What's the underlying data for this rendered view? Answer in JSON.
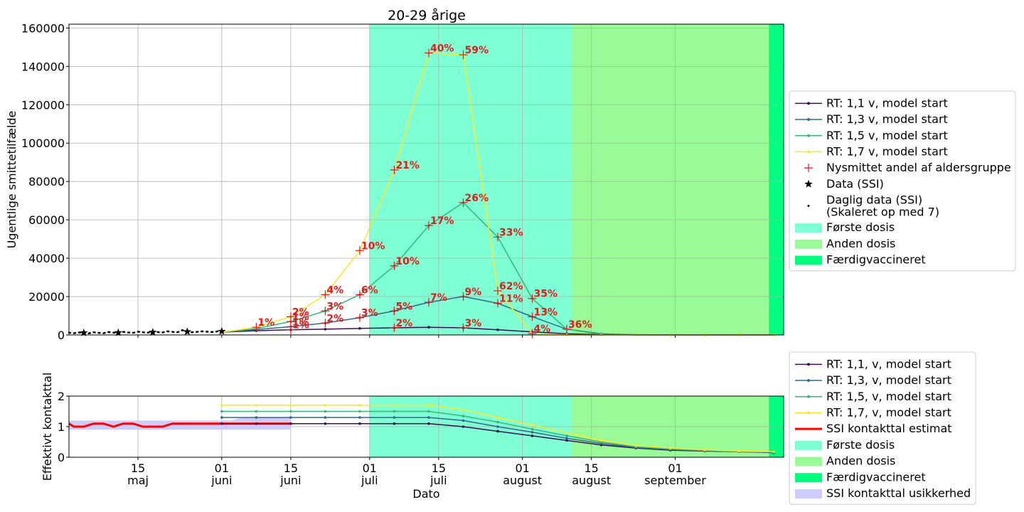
{
  "chart_data": [
    {
      "type": "line",
      "title": "20-29 årige",
      "ylabel": "Ugentlige smittetilfælde",
      "xlabel": "",
      "xlim": [
        "2021-05-01",
        "2021-09-23"
      ],
      "ylim": [
        0,
        162000
      ],
      "yticks": [
        0,
        20000,
        40000,
        60000,
        80000,
        100000,
        120000,
        140000,
        160000
      ],
      "grid": true,
      "legend_position": "right",
      "shaded_periods": [
        {
          "name": "Første dosis",
          "start": "2021-07-01",
          "end": "2021-08-11",
          "color": "#7fffd4"
        },
        {
          "name": "Anden dosis",
          "start": "2021-08-11",
          "end": "2021-09-20",
          "color": "#98fb98"
        },
        {
          "name": "Færdigvaccineret",
          "start": "2021-09-20",
          "end": "2021-09-23",
          "color": "#00ff7f"
        }
      ],
      "x": [
        "2021-06-01",
        "2021-06-08",
        "2021-06-15",
        "2021-06-22",
        "2021-06-29",
        "2021-07-06",
        "2021-07-13",
        "2021-07-20",
        "2021-07-27",
        "2021-08-03",
        "2021-08-10",
        "2021-08-17",
        "2021-08-24",
        "2021-08-31",
        "2021-09-07",
        "2021-09-14",
        "2021-09-21"
      ],
      "series": [
        {
          "name": "RT: 1,1 v, model start",
          "color": "#3b0f4f",
          "values": [
            1500,
            2200,
            2700,
            3000,
            3400,
            3700,
            4000,
            3700,
            2700,
            1600,
            600,
            200,
            60,
            20,
            10,
            5,
            2
          ]
        },
        {
          "name": "RT: 1,3 v, model start",
          "color": "#31688e",
          "values": [
            1500,
            2800,
            4300,
            6200,
            9000,
            12500,
            17000,
            20000,
            16500,
            9500,
            3000,
            600,
            120,
            30,
            10,
            5,
            2
          ]
        },
        {
          "name": "RT: 1,5 v, model start",
          "color": "#35b779",
          "values": [
            1500,
            3300,
            7000,
            12500,
            21000,
            36000,
            57000,
            69000,
            51000,
            19000,
            3000,
            300,
            40,
            10,
            5,
            2,
            1
          ]
        },
        {
          "name": "RT: 1,7 v, model start",
          "color": "#fde725",
          "values": [
            1500,
            4000,
            9500,
            21000,
            44000,
            86000,
            147000,
            146000,
            23000,
            700,
            100,
            20,
            5,
            2,
            1,
            1,
            0
          ]
        }
      ],
      "markers": {
        "name": "Nysmittet andel af aldersgruppe",
        "color": "#e41a1c",
        "points": [
          {
            "x": "2021-06-08",
            "y": 4000,
            "label": "1%"
          },
          {
            "x": "2021-06-15",
            "y": 9500,
            "label": "2%"
          },
          {
            "x": "2021-06-15",
            "y": 7000,
            "label": "1%"
          },
          {
            "x": "2021-06-15",
            "y": 4300,
            "label": "1%"
          },
          {
            "x": "2021-06-15",
            "y": 2700,
            "label": "1%"
          },
          {
            "x": "2021-06-22",
            "y": 21000,
            "label": "4%"
          },
          {
            "x": "2021-06-22",
            "y": 12500,
            "label": "3%"
          },
          {
            "x": "2021-06-22",
            "y": 6200,
            "label": "2%"
          },
          {
            "x": "2021-06-29",
            "y": 44000,
            "label": "10%"
          },
          {
            "x": "2021-06-29",
            "y": 21000,
            "label": "6%"
          },
          {
            "x": "2021-06-29",
            "y": 9000,
            "label": "3%"
          },
          {
            "x": "2021-07-06",
            "y": 86000,
            "label": "21%"
          },
          {
            "x": "2021-07-06",
            "y": 36000,
            "label": "10%"
          },
          {
            "x": "2021-07-06",
            "y": 12500,
            "label": "5%"
          },
          {
            "x": "2021-07-06",
            "y": 3700,
            "label": "2%"
          },
          {
            "x": "2021-07-13",
            "y": 147000,
            "label": "40%"
          },
          {
            "x": "2021-07-13",
            "y": 57000,
            "label": "17%"
          },
          {
            "x": "2021-07-13",
            "y": 17000,
            "label": "7%"
          },
          {
            "x": "2021-07-20",
            "y": 146000,
            "label": "59%"
          },
          {
            "x": "2021-07-20",
            "y": 69000,
            "label": "26%"
          },
          {
            "x": "2021-07-20",
            "y": 20000,
            "label": "9%"
          },
          {
            "x": "2021-07-20",
            "y": 3700,
            "label": "3%"
          },
          {
            "x": "2021-07-27",
            "y": 51000,
            "label": "33%"
          },
          {
            "x": "2021-07-27",
            "y": 23000,
            "label": "62%"
          },
          {
            "x": "2021-07-27",
            "y": 16500,
            "label": "11%"
          },
          {
            "x": "2021-08-03",
            "y": 19000,
            "label": "35%"
          },
          {
            "x": "2021-08-03",
            "y": 9500,
            "label": "13%"
          },
          {
            "x": "2021-08-03",
            "y": 700,
            "label": "4%"
          },
          {
            "x": "2021-08-10",
            "y": 3000,
            "label": "36%"
          }
        ]
      },
      "ssi_data": {
        "name": "Data (SSI)",
        "x": [
          "2021-05-04",
          "2021-05-11",
          "2021-05-18",
          "2021-05-25",
          "2021-06-01"
        ],
        "values": [
          1100,
          1200,
          1400,
          1700,
          1900
        ]
      },
      "daily_data": {
        "name": "Daglig data (SSI)\n(Skaleret op med 7)",
        "start": "2021-05-01",
        "values": [
          1200,
          900,
          1300,
          1000,
          800,
          1400,
          1100,
          900,
          1500,
          1200,
          1000,
          1600,
          1300,
          1100,
          1700,
          1400,
          1200,
          1800,
          1500,
          1300,
          1900,
          1600,
          1400,
          2500,
          1700,
          1400,
          1600,
          1900,
          1700,
          1500,
          1800,
          2000
        ]
      },
      "legend": [
        {
          "label": "RT: 1,1 v, model start",
          "kind": "line",
          "color": "#3b0f4f"
        },
        {
          "label": "RT: 1,3 v, model start",
          "kind": "line",
          "color": "#31688e"
        },
        {
          "label": "RT: 1,5 v, model start",
          "kind": "line",
          "color": "#35b779"
        },
        {
          "label": "RT: 1,7 v, model start",
          "kind": "line",
          "color": "#fde725"
        },
        {
          "label": "Nysmittet andel af aldersgruppe",
          "kind": "plus",
          "color": "#e41a1c"
        },
        {
          "label": "Data (SSI)",
          "kind": "star",
          "color": "#000000"
        },
        {
          "label": "Daglig data (SSI)\n(Skaleret op med 7)",
          "kind": "dot",
          "color": "#000000"
        },
        {
          "label": "Første dosis",
          "kind": "patch",
          "color": "#7fffd4"
        },
        {
          "label": "Anden dosis",
          "kind": "patch",
          "color": "#98fb98"
        },
        {
          "label": "Færdigvaccineret",
          "kind": "patch",
          "color": "#00ff7f"
        }
      ]
    },
    {
      "type": "line",
      "title": "",
      "ylabel": "Effektivt kontakttal",
      "xlabel": "Dato",
      "xlim": [
        "2021-05-01",
        "2021-09-23"
      ],
      "ylim": [
        0,
        2
      ],
      "yticks": [
        0,
        1,
        2
      ],
      "grid": true,
      "legend_position": "right",
      "xticks": [
        {
          "date": "2021-05-15",
          "day": "15",
          "month": "maj"
        },
        {
          "date": "2021-06-01",
          "day": "01",
          "month": "juni"
        },
        {
          "date": "2021-06-15",
          "day": "15",
          "month": "juni"
        },
        {
          "date": "2021-07-01",
          "day": "01",
          "month": "juli"
        },
        {
          "date": "2021-07-15",
          "day": "15",
          "month": "juli"
        },
        {
          "date": "2021-08-01",
          "day": "01",
          "month": "august"
        },
        {
          "date": "2021-08-15",
          "day": "15",
          "month": "august"
        },
        {
          "date": "2021-09-01",
          "day": "01",
          "month": "september"
        }
      ],
      "x": [
        "2021-06-01",
        "2021-06-08",
        "2021-06-15",
        "2021-06-22",
        "2021-06-29",
        "2021-07-06",
        "2021-07-13",
        "2021-07-20",
        "2021-07-27",
        "2021-08-03",
        "2021-08-10",
        "2021-08-17",
        "2021-08-24",
        "2021-08-31",
        "2021-09-07",
        "2021-09-14",
        "2021-09-21"
      ],
      "series": [
        {
          "name": "RT: 1,1, v, model start",
          "color": "#3b0f4f",
          "values": [
            1.1,
            1.1,
            1.1,
            1.1,
            1.1,
            1.1,
            1.1,
            1.0,
            0.85,
            0.7,
            0.55,
            0.4,
            0.3,
            0.23,
            0.2,
            0.18,
            0.15
          ]
        },
        {
          "name": "RT: 1,3, v, model start",
          "color": "#31688e",
          "values": [
            1.3,
            1.3,
            1.3,
            1.3,
            1.3,
            1.3,
            1.3,
            1.2,
            1.0,
            0.82,
            0.62,
            0.45,
            0.32,
            0.25,
            0.21,
            0.18,
            0.16
          ]
        },
        {
          "name": "RT: 1,5, v, model start",
          "color": "#35b779",
          "values": [
            1.5,
            1.5,
            1.5,
            1.5,
            1.5,
            1.5,
            1.5,
            1.35,
            1.15,
            0.92,
            0.7,
            0.5,
            0.34,
            0.27,
            0.22,
            0.19,
            0.17
          ]
        },
        {
          "name": "RT: 1,7, v, model start",
          "color": "#fde725",
          "values": [
            1.7,
            1.7,
            1.7,
            1.7,
            1.7,
            1.7,
            1.7,
            1.55,
            1.3,
            1.05,
            0.8,
            0.55,
            0.38,
            0.3,
            0.24,
            0.2,
            0.18
          ]
        }
      ],
      "ssi_estimate": {
        "name": "SSI kontakttal estimat",
        "color": "#ff0000",
        "start": "2021-05-01",
        "values": [
          1.1,
          1.0,
          1.0,
          1.0,
          1.05,
          1.1,
          1.1,
          1.1,
          1.05,
          1.0,
          1.05,
          1.1,
          1.1,
          1.1,
          1.05,
          1.0,
          1.0,
          1.0,
          1.0,
          1.0,
          1.05,
          1.1,
          1.1,
          1.1,
          1.1,
          1.1,
          1.1,
          1.1,
          1.1,
          1.1,
          1.1,
          1.1,
          1.1,
          1.1,
          1.1,
          1.1,
          1.1,
          1.1,
          1.1,
          1.1,
          1.1,
          1.1,
          1.1,
          1.1,
          1.1,
          1.1
        ]
      },
      "ssi_uncertainty": {
        "name": "SSI kontakttal usikkerhed",
        "color": "#ccccff",
        "start": "2021-05-01",
        "lower": [
          0.9,
          0.9,
          0.9,
          0.9,
          0.9,
          0.9,
          0.9,
          0.9,
          0.9,
          0.9,
          0.9,
          0.9,
          0.9,
          0.9,
          0.9,
          0.9,
          0.9,
          0.9,
          0.9,
          0.9,
          0.9,
          0.9,
          0.9,
          0.9,
          0.9,
          0.9,
          0.9,
          0.9,
          0.9,
          0.9,
          0.9,
          0.9,
          0.9,
          0.9,
          0.9,
          0.9,
          0.9,
          0.9,
          0.9,
          0.9,
          0.9,
          0.9,
          0.9,
          0.9,
          0.9,
          0.9
        ],
        "upper": [
          1.2,
          1.2,
          1.2,
          1.2,
          1.2,
          1.2,
          1.2,
          1.2,
          1.2,
          1.2,
          1.2,
          1.2,
          1.2,
          1.2,
          1.2,
          1.2,
          1.2,
          1.2,
          1.2,
          1.2,
          1.2,
          1.2,
          1.2,
          1.2,
          1.2,
          1.2,
          1.2,
          1.2,
          1.2,
          1.2,
          1.2,
          1.2,
          1.2,
          1.2,
          1.25,
          1.3,
          1.3,
          1.3,
          1.3,
          1.3,
          1.3,
          1.3,
          1.3,
          1.3,
          1.3,
          1.3
        ]
      },
      "legend": [
        {
          "label": "RT: 1,1, v, model start",
          "kind": "line",
          "color": "#3b0f4f"
        },
        {
          "label": "RT: 1,3, v, model start",
          "kind": "line",
          "color": "#31688e"
        },
        {
          "label": "RT: 1,5, v, model start",
          "kind": "line",
          "color": "#35b779"
        },
        {
          "label": "RT: 1,7, v, model start",
          "kind": "line",
          "color": "#fde725"
        },
        {
          "label": "SSI kontakttal estimat",
          "kind": "thickline",
          "color": "#ff0000"
        },
        {
          "label": "Første dosis",
          "kind": "patch",
          "color": "#7fffd4"
        },
        {
          "label": "Anden dosis",
          "kind": "patch",
          "color": "#98fb98"
        },
        {
          "label": "Færdigvaccineret",
          "kind": "patch",
          "color": "#00ff7f"
        },
        {
          "label": "SSI kontakttal usikkerhed",
          "kind": "patch",
          "color": "#ccccff"
        }
      ]
    }
  ]
}
